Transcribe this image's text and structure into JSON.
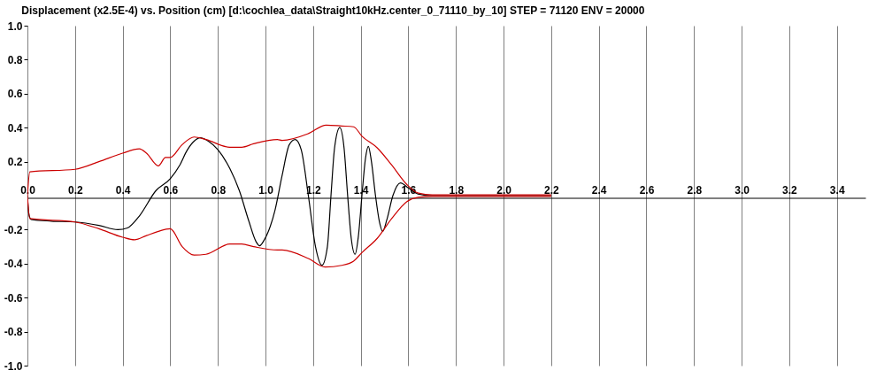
{
  "chart_data": {
    "type": "line",
    "title": "Displacement (x2.5E-4) vs. Position (cm) [d:\\cochlea_data\\Straight10kHz.center_0_71110_by_10] STEP = 71120 ENV = 20000",
    "series": [
      {
        "color": "#000000",
        "x": [
          0.0,
          0.005,
          0.015,
          0.1,
          0.2,
          0.3,
          0.38,
          0.42,
          0.47,
          0.54,
          0.6,
          0.64,
          0.67,
          0.7,
          0.725,
          0.76,
          0.8,
          0.85,
          0.89,
          0.93,
          0.96,
          0.975,
          0.995,
          1.04,
          1.07,
          1.1,
          1.125,
          1.15,
          1.18,
          1.21,
          1.237,
          1.26,
          1.275,
          1.29,
          1.312,
          1.33,
          1.345,
          1.36,
          1.376,
          1.39,
          1.405,
          1.42,
          1.432,
          1.445,
          1.462,
          1.478,
          1.492,
          1.51,
          1.535,
          1.567,
          1.6,
          1.64,
          1.7,
          2.2
        ],
        "values": [
          0,
          -0.1,
          -0.14,
          -0.15,
          -0.155,
          -0.175,
          -0.2,
          -0.19,
          -0.12,
          0.03,
          0.1,
          0.18,
          0.265,
          0.32,
          0.34,
          0.32,
          0.27,
          0.16,
          0.03,
          -0.15,
          -0.27,
          -0.295,
          -0.26,
          -0.085,
          0.12,
          0.3,
          0.33,
          0.27,
          0,
          -0.3,
          -0.41,
          -0.3,
          0,
          0.28,
          0.4,
          0.28,
          0,
          -0.25,
          -0.345,
          -0.24,
          0,
          0.22,
          0.29,
          0.2,
          0,
          -0.15,
          -0.21,
          -0.14,
          0,
          0.075,
          0.045,
          0.01,
          0,
          0
        ]
      },
      {
        "color": "#cc0000",
        "x": [
          0.0,
          0.01,
          0.2,
          0.3,
          0.4,
          0.47,
          0.5,
          0.55,
          0.58,
          0.6,
          0.65,
          0.7,
          0.75,
          0.85,
          0.9,
          0.95,
          1.05,
          1.07,
          1.18,
          1.255,
          1.32,
          1.37,
          1.405,
          1.47,
          1.53,
          1.594,
          1.642,
          1.7,
          2.2
        ],
        "values": [
          0,
          0.14,
          0.155,
          0.2,
          0.25,
          0.275,
          0.25,
          0.175,
          0.225,
          0.225,
          0.3,
          0.345,
          0.33,
          0.285,
          0.285,
          0.305,
          0.33,
          0.325,
          0.365,
          0.415,
          0.41,
          0.405,
          0.35,
          0.28,
          0.18,
          0.065,
          0.015,
          0.005,
          0.005
        ]
      },
      {
        "color": "#cc0000",
        "x": [
          0.0,
          0.01,
          0.2,
          0.3,
          0.4,
          0.45,
          0.5,
          0.55,
          0.6,
          0.65,
          0.7,
          0.75,
          0.85,
          0.9,
          0.95,
          1.05,
          1.07,
          1.18,
          1.25,
          1.32,
          1.37,
          1.405,
          1.47,
          1.53,
          1.594,
          1.642,
          1.7,
          2.2
        ],
        "values": [
          0,
          -0.135,
          -0.155,
          -0.195,
          -0.245,
          -0.26,
          -0.235,
          -0.21,
          -0.195,
          -0.3,
          -0.35,
          -0.345,
          -0.285,
          -0.285,
          -0.3,
          -0.32,
          -0.32,
          -0.37,
          -0.42,
          -0.41,
          -0.385,
          -0.335,
          -0.25,
          -0.135,
          -0.035,
          -0.01,
          -0.005,
          -0.005
        ]
      }
    ],
    "xlim": [
      0,
      3.52
    ],
    "xticks": [
      {
        "value": 0,
        "label": "0.0"
      },
      0.2,
      0.4,
      0.6,
      0.8,
      {
        "value": 1,
        "label": "1.0"
      },
      1.2,
      1.4,
      1.6,
      1.8,
      {
        "value": 2,
        "label": "2.0"
      },
      2.2,
      2.4,
      2.6,
      2.8,
      {
        "value": 3,
        "label": "3.0"
      },
      3.2,
      3.4
    ],
    "ylim": [
      -1,
      1
    ],
    "yticks": [
      {
        "value": 1,
        "label": "1.0"
      },
      0.8,
      0.6,
      0.4,
      0.2,
      -0.2,
      -0.4,
      -0.6,
      -0.8,
      {
        "value": -1,
        "label": "-1.0"
      }
    ],
    "grid": "x",
    "line_style": "solid"
  }
}
